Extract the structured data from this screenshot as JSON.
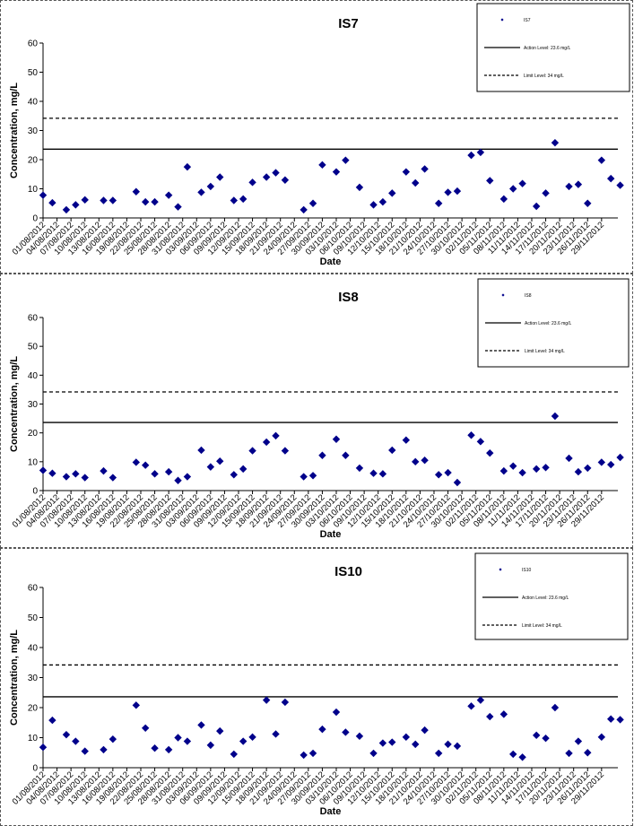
{
  "chart_data": [
    {
      "type": "scatter",
      "title": "IS7",
      "xlabel": "Date",
      "ylabel": "Concentration, mg/L",
      "ylim": [
        0,
        60
      ],
      "yticks": [
        0,
        10,
        20,
        30,
        40,
        50,
        60
      ],
      "xlim": [
        "01/08/2012",
        "30/11/2012"
      ],
      "x_tick_labels": [
        "01/08/2012",
        "04/08/2012",
        "07/08/2012",
        "10/08/2012",
        "13/08/2012",
        "16/08/2012",
        "19/08/2012",
        "22/08/2012",
        "25/08/2012",
        "28/08/2012",
        "31/08/2012",
        "03/09/2012",
        "06/09/2012",
        "09/09/2012",
        "12/09/2012",
        "15/09/2012",
        "18/09/2012",
        "21/09/2012",
        "24/09/2012",
        "27/09/2012",
        "30/09/2012",
        "03/10/2012",
        "06/10/2012",
        "09/10/2012",
        "12/10/2012",
        "15/10/2012",
        "18/10/2012",
        "21/10/2012",
        "24/10/2012",
        "27/10/2012",
        "30/10/2012",
        "02/11/2012",
        "05/11/2012",
        "08/11/2012",
        "11/11/2012",
        "14/11/2012",
        "17/11/2012",
        "20/11/2012",
        "23/11/2012",
        "26/11/2012",
        "29/11/2012"
      ],
      "series": [
        {
          "name": "IS7",
          "color": "#00008B",
          "marker": "diamond",
          "points": [
            {
              "x": "01/08/2012",
              "y": 7.8
            },
            {
              "x": "03/08/2012",
              "y": 5.2
            },
            {
              "x": "06/08/2012",
              "y": 2.8
            },
            {
              "x": "08/08/2012",
              "y": 4.5
            },
            {
              "x": "10/08/2012",
              "y": 6.2
            },
            {
              "x": "14/08/2012",
              "y": 6.0
            },
            {
              "x": "16/08/2012",
              "y": 6.0
            },
            {
              "x": "21/08/2012",
              "y": 9.0
            },
            {
              "x": "23/08/2012",
              "y": 5.5
            },
            {
              "x": "25/08/2012",
              "y": 5.5
            },
            {
              "x": "28/08/2012",
              "y": 7.8
            },
            {
              "x": "30/08/2012",
              "y": 3.8
            },
            {
              "x": "01/09/2012",
              "y": 17.5
            },
            {
              "x": "04/09/2012",
              "y": 8.8
            },
            {
              "x": "06/09/2012",
              "y": 10.8
            },
            {
              "x": "08/09/2012",
              "y": 14.0
            },
            {
              "x": "11/09/2012",
              "y": 6.0
            },
            {
              "x": "13/09/2012",
              "y": 6.5
            },
            {
              "x": "15/09/2012",
              "y": 12.2
            },
            {
              "x": "18/09/2012",
              "y": 14.0
            },
            {
              "x": "20/09/2012",
              "y": 15.5
            },
            {
              "x": "22/09/2012",
              "y": 13.0
            },
            {
              "x": "26/09/2012",
              "y": 2.8
            },
            {
              "x": "28/09/2012",
              "y": 5.0
            },
            {
              "x": "30/09/2012",
              "y": 18.2
            },
            {
              "x": "03/10/2012",
              "y": 15.8
            },
            {
              "x": "05/10/2012",
              "y": 19.8
            },
            {
              "x": "08/10/2012",
              "y": 10.5
            },
            {
              "x": "11/10/2012",
              "y": 4.5
            },
            {
              "x": "13/10/2012",
              "y": 5.5
            },
            {
              "x": "15/10/2012",
              "y": 8.5
            },
            {
              "x": "18/10/2012",
              "y": 15.8
            },
            {
              "x": "20/10/2012",
              "y": 12.0
            },
            {
              "x": "22/10/2012",
              "y": 16.8
            },
            {
              "x": "25/10/2012",
              "y": 5.0
            },
            {
              "x": "27/10/2012",
              "y": 8.8
            },
            {
              "x": "29/10/2012",
              "y": 9.2
            },
            {
              "x": "01/11/2012",
              "y": 21.5
            },
            {
              "x": "03/11/2012",
              "y": 22.5
            },
            {
              "x": "05/11/2012",
              "y": 12.8
            },
            {
              "x": "08/11/2012",
              "y": 6.5
            },
            {
              "x": "10/11/2012",
              "y": 10.0
            },
            {
              "x": "12/11/2012",
              "y": 11.8
            },
            {
              "x": "15/11/2012",
              "y": 4.0
            },
            {
              "x": "17/11/2012",
              "y": 8.5
            },
            {
              "x": "19/11/2012",
              "y": 25.8
            },
            {
              "x": "22/11/2012",
              "y": 10.8
            },
            {
              "x": "24/11/2012",
              "y": 11.5
            },
            {
              "x": "26/11/2012",
              "y": 5.0
            },
            {
              "x": "29/11/2012",
              "y": 19.8
            },
            {
              "x": "31/11/2012",
              "y": 13.5
            },
            {
              "x": "33/11/2012",
              "y": 11.2
            }
          ]
        },
        {
          "name": "Action Level: 23.6 mg/L",
          "y": 23.6,
          "style": "solid",
          "color": "#000000"
        },
        {
          "name": "Limit Level: 34 mg/L",
          "y": 34.2,
          "style": "dashed",
          "color": "#000000"
        }
      ],
      "grid": false,
      "legend_position": "top-right"
    },
    {
      "type": "scatter",
      "title": "IS8",
      "xlabel": "Date",
      "ylabel": "Concentration, mg/L",
      "ylim": [
        0,
        60
      ],
      "yticks": [
        0,
        10,
        20,
        30,
        40,
        50,
        60
      ],
      "xlim": [
        "01/08/2012",
        "30/11/2012"
      ],
      "x_tick_labels": [
        "01/08/2012",
        "04/08/2012",
        "07/08/2012",
        "10/08/2012",
        "13/08/2012",
        "16/08/2012",
        "19/08/2012",
        "22/08/2012",
        "25/08/2012",
        "28/08/2012",
        "31/08/2012",
        "03/09/2012",
        "06/09/2012",
        "09/09/2012",
        "12/09/2012",
        "15/09/2012",
        "18/09/2012",
        "21/09/2012",
        "24/09/2012",
        "27/09/2012",
        "30/09/2012",
        "03/10/2012",
        "06/10/2012",
        "09/10/2012",
        "12/10/2012",
        "15/10/2012",
        "18/10/2012",
        "21/10/2012",
        "24/10/2012",
        "27/10/2012",
        "30/10/2012",
        "02/11/2012",
        "05/11/2012",
        "08/11/2012",
        "11/11/2012",
        "14/11/2012",
        "17/11/2012",
        "20/11/2012",
        "23/11/2012",
        "26/11/2012",
        "29/11/2012"
      ],
      "series": [
        {
          "name": "IS8",
          "color": "#00008B",
          "marker": "diamond",
          "points": [
            {
              "x": "01/08/2012",
              "y": 7.0
            },
            {
              "x": "03/08/2012",
              "y": 6.0
            },
            {
              "x": "06/08/2012",
              "y": 4.8
            },
            {
              "x": "08/08/2012",
              "y": 5.8
            },
            {
              "x": "10/08/2012",
              "y": 4.5
            },
            {
              "x": "14/08/2012",
              "y": 6.8
            },
            {
              "x": "16/08/2012",
              "y": 4.5
            },
            {
              "x": "21/08/2012",
              "y": 9.8
            },
            {
              "x": "23/08/2012",
              "y": 8.8
            },
            {
              "x": "25/08/2012",
              "y": 5.8
            },
            {
              "x": "28/08/2012",
              "y": 6.5
            },
            {
              "x": "30/08/2012",
              "y": 3.5
            },
            {
              "x": "01/09/2012",
              "y": 4.8
            },
            {
              "x": "04/09/2012",
              "y": 14.0
            },
            {
              "x": "06/09/2012",
              "y": 8.2
            },
            {
              "x": "08/09/2012",
              "y": 10.2
            },
            {
              "x": "11/09/2012",
              "y": 5.5
            },
            {
              "x": "13/09/2012",
              "y": 7.5
            },
            {
              "x": "15/09/2012",
              "y": 13.8
            },
            {
              "x": "18/09/2012",
              "y": 16.8
            },
            {
              "x": "20/09/2012",
              "y": 19.0
            },
            {
              "x": "22/09/2012",
              "y": 13.8
            },
            {
              "x": "26/09/2012",
              "y": 4.8
            },
            {
              "x": "28/09/2012",
              "y": 5.2
            },
            {
              "x": "30/09/2012",
              "y": 12.2
            },
            {
              "x": "03/10/2012",
              "y": 17.8
            },
            {
              "x": "05/10/2012",
              "y": 12.2
            },
            {
              "x": "08/10/2012",
              "y": 7.8
            },
            {
              "x": "11/10/2012",
              "y": 6.0
            },
            {
              "x": "13/10/2012",
              "y": 5.8
            },
            {
              "x": "15/10/2012",
              "y": 14.0
            },
            {
              "x": "18/10/2012",
              "y": 17.5
            },
            {
              "x": "20/10/2012",
              "y": 10.0
            },
            {
              "x": "22/10/2012",
              "y": 10.5
            },
            {
              "x": "25/10/2012",
              "y": 5.5
            },
            {
              "x": "27/10/2012",
              "y": 6.2
            },
            {
              "x": "29/10/2012",
              "y": 2.8
            },
            {
              "x": "01/11/2012",
              "y": 19.2
            },
            {
              "x": "03/11/2012",
              "y": 17.0
            },
            {
              "x": "05/11/2012",
              "y": 13.0
            },
            {
              "x": "08/11/2012",
              "y": 6.8
            },
            {
              "x": "10/11/2012",
              "y": 8.5
            },
            {
              "x": "12/11/2012",
              "y": 6.2
            },
            {
              "x": "15/11/2012",
              "y": 7.5
            },
            {
              "x": "17/11/2012",
              "y": 8.0
            },
            {
              "x": "19/11/2012",
              "y": 25.8
            },
            {
              "x": "22/11/2012",
              "y": 11.2
            },
            {
              "x": "24/11/2012",
              "y": 6.5
            },
            {
              "x": "26/11/2012",
              "y": 7.8
            },
            {
              "x": "29/11/2012",
              "y": 9.8
            },
            {
              "x": "31/11/2012",
              "y": 9.0
            },
            {
              "x": "33/11/2012",
              "y": 11.5
            }
          ]
        },
        {
          "name": "Action Level: 23.6 mg/L",
          "y": 23.6,
          "style": "solid",
          "color": "#000000"
        },
        {
          "name": "Limit Level: 34 mg/L",
          "y": 34.2,
          "style": "dashed",
          "color": "#000000"
        }
      ],
      "grid": false,
      "legend_position": "top-right"
    },
    {
      "type": "scatter",
      "title": "IS10",
      "xlabel": "Date",
      "ylabel": "Concentration, mg/L",
      "ylim": [
        0,
        60
      ],
      "yticks": [
        0,
        10,
        20,
        30,
        40,
        50,
        60
      ],
      "xlim": [
        "01/08/2012",
        "30/11/2012"
      ],
      "x_tick_labels": [
        "01/08/2012",
        "04/08/2012",
        "07/08/2012",
        "10/08/2012",
        "13/08/2012",
        "16/08/2012",
        "19/08/2012",
        "22/08/2012",
        "25/08/2012",
        "28/08/2012",
        "31/08/2012",
        "03/09/2012",
        "06/09/2012",
        "09/09/2012",
        "12/09/2012",
        "15/09/2012",
        "18/09/2012",
        "21/09/2012",
        "24/09/2012",
        "27/09/2012",
        "30/09/2012",
        "03/10/2012",
        "06/10/2012",
        "09/10/2012",
        "12/10/2012",
        "15/10/2012",
        "18/10/2012",
        "21/10/2012",
        "24/10/2012",
        "27/10/2012",
        "30/10/2012",
        "02/11/2012",
        "05/11/2012",
        "08/11/2012",
        "11/11/2012",
        "14/11/2012",
        "17/11/2012",
        "20/11/2012",
        "23/11/2012",
        "26/11/2012",
        "29/11/2012"
      ],
      "series": [
        {
          "name": "IS10",
          "color": "#00008B",
          "marker": "diamond",
          "points": [
            {
              "x": "01/08/2012",
              "y": 6.8
            },
            {
              "x": "03/08/2012",
              "y": 15.8
            },
            {
              "x": "06/08/2012",
              "y": 11.0
            },
            {
              "x": "08/08/2012",
              "y": 8.8
            },
            {
              "x": "10/08/2012",
              "y": 5.5
            },
            {
              "x": "14/08/2012",
              "y": 6.0
            },
            {
              "x": "16/08/2012",
              "y": 9.5
            },
            {
              "x": "21/08/2012",
              "y": 20.8
            },
            {
              "x": "23/08/2012",
              "y": 13.2
            },
            {
              "x": "25/08/2012",
              "y": 6.5
            },
            {
              "x": "28/08/2012",
              "y": 6.0
            },
            {
              "x": "30/08/2012",
              "y": 10.0
            },
            {
              "x": "01/09/2012",
              "y": 8.8
            },
            {
              "x": "04/09/2012",
              "y": 14.2
            },
            {
              "x": "06/09/2012",
              "y": 7.5
            },
            {
              "x": "08/09/2012",
              "y": 12.2
            },
            {
              "x": "11/09/2012",
              "y": 4.5
            },
            {
              "x": "13/09/2012",
              "y": 8.8
            },
            {
              "x": "15/09/2012",
              "y": 10.2
            },
            {
              "x": "18/09/2012",
              "y": 22.5
            },
            {
              "x": "20/09/2012",
              "y": 11.2
            },
            {
              "x": "22/09/2012",
              "y": 21.8
            },
            {
              "x": "26/09/2012",
              "y": 4.2
            },
            {
              "x": "28/09/2012",
              "y": 4.8
            },
            {
              "x": "30/09/2012",
              "y": 12.8
            },
            {
              "x": "03/10/2012",
              "y": 18.5
            },
            {
              "x": "05/10/2012",
              "y": 11.8
            },
            {
              "x": "08/10/2012",
              "y": 10.5
            },
            {
              "x": "11/10/2012",
              "y": 4.8
            },
            {
              "x": "13/10/2012",
              "y": 8.2
            },
            {
              "x": "15/10/2012",
              "y": 8.5
            },
            {
              "x": "18/10/2012",
              "y": 10.2
            },
            {
              "x": "20/10/2012",
              "y": 7.8
            },
            {
              "x": "22/10/2012",
              "y": 12.5
            },
            {
              "x": "25/10/2012",
              "y": 4.8
            },
            {
              "x": "27/10/2012",
              "y": 7.8
            },
            {
              "x": "29/10/2012",
              "y": 7.2
            },
            {
              "x": "01/11/2012",
              "y": 20.5
            },
            {
              "x": "03/11/2012",
              "y": 22.5
            },
            {
              "x": "05/11/2012",
              "y": 17.0
            },
            {
              "x": "08/11/2012",
              "y": 17.8
            },
            {
              "x": "10/11/2012",
              "y": 4.5
            },
            {
              "x": "12/11/2012",
              "y": 3.5
            },
            {
              "x": "15/11/2012",
              "y": 10.8
            },
            {
              "x": "17/11/2012",
              "y": 9.8
            },
            {
              "x": "19/11/2012",
              "y": 20.0
            },
            {
              "x": "22/11/2012",
              "y": 4.8
            },
            {
              "x": "24/11/2012",
              "y": 8.8
            },
            {
              "x": "26/11/2012",
              "y": 5.0
            },
            {
              "x": "29/11/2012",
              "y": 10.2
            },
            {
              "x": "31/11/2012",
              "y": 16.2
            },
            {
              "x": "33/11/2012",
              "y": 16.0
            }
          ]
        },
        {
          "name": "Action Level: 23.6 mg/L",
          "y": 23.6,
          "style": "solid",
          "color": "#000000"
        },
        {
          "name": "Limit Level: 34 mg/L",
          "y": 34.2,
          "style": "dashed",
          "color": "#000000"
        }
      ],
      "grid": false,
      "legend_position": "top-right"
    }
  ]
}
